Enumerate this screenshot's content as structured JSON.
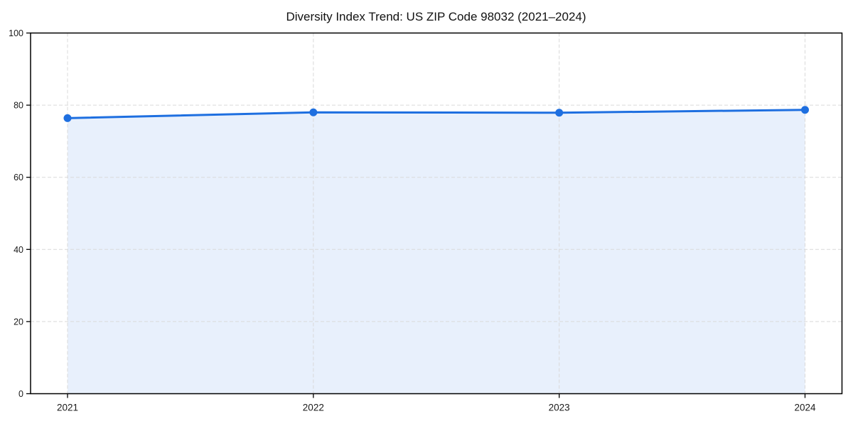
{
  "chart_data": {
    "type": "area",
    "title": "Diversity Index Trend: US ZIP Code 98032 (2021–2024)",
    "categories": [
      "2021",
      "2022",
      "2023",
      "2024"
    ],
    "series": [
      {
        "name": "Diversity Index",
        "values": [
          76.4,
          78.0,
          77.9,
          78.7
        ]
      }
    ],
    "xlabel": "",
    "ylabel": "",
    "ylim": [
      0,
      100
    ],
    "yticks": [
      0,
      20,
      40,
      60,
      80,
      100
    ],
    "grid": "dashed",
    "legend_position": "none",
    "marker": "circle",
    "fill_opacity": 0.1,
    "colors": {
      "line": "#1e6fe0",
      "marker": "#1e6fe0",
      "fill_base": "#1e6fe0",
      "grid": "#d9d9d9",
      "axis": "#000000",
      "figure_background": "#ffffff",
      "plot_background": "#ffffff",
      "title_text": "#111111",
      "tick_text": "#1a1a1a"
    }
  }
}
